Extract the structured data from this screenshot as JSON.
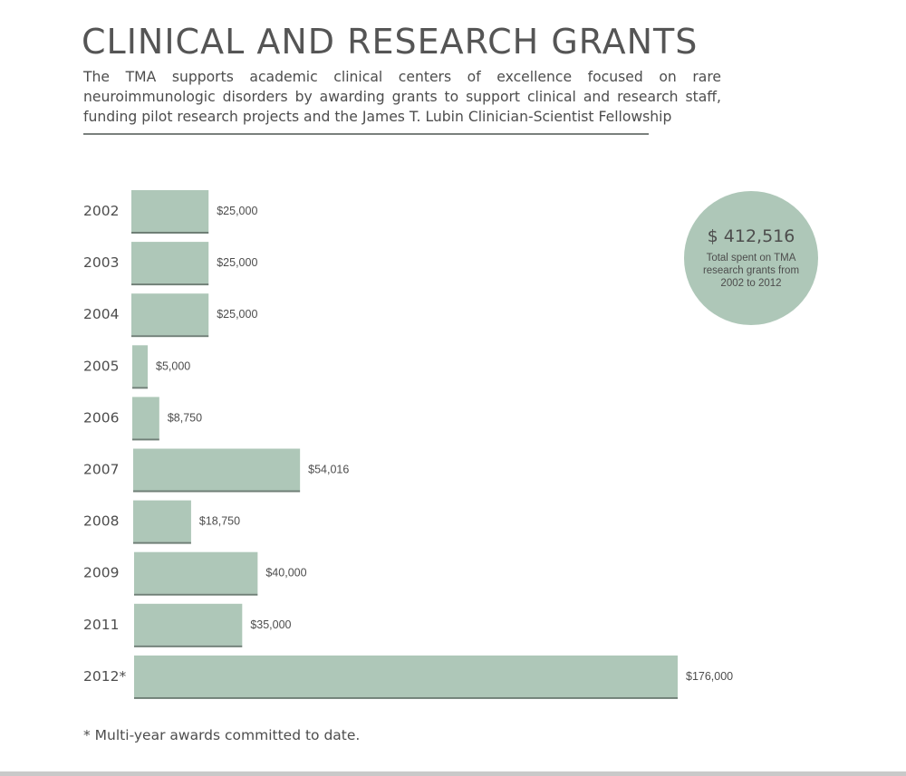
{
  "header": {
    "title": "CLINICAL AND RESEARCH GRANTS",
    "intro": "The TMA supports academic clinical centers of excellence focused on rare neuroimmunologic disorders by awarding grants to support clinical and research staff, funding pilot research projects and the James T. Lubin Clinician-Scientist Fellowship"
  },
  "callout": {
    "amount": "$ 412,516",
    "text": "Total spent on TMA research grants from 2002 to 2012"
  },
  "footnote": "* Multi-year awards committed to date.",
  "colors": {
    "bar": "#aec7b8",
    "bar_edge": "#6f7f76",
    "callout": "#aec7b8"
  },
  "chart_data": {
    "type": "bar",
    "orientation": "horizontal",
    "categories": [
      "2002",
      "2003",
      "2004",
      "2005",
      "2006",
      "2007",
      "2008",
      "2009",
      "2011",
      "2012*"
    ],
    "values": [
      25000,
      25000,
      25000,
      5000,
      8750,
      54016,
      18750,
      40000,
      35000,
      176000
    ],
    "value_labels": [
      "$25,000",
      "$25,000",
      "$25,000",
      "$5,000",
      "$8,750",
      "$54,016",
      "$18,750",
      "$40,000",
      "$35,000",
      "$176,000"
    ],
    "grid": false,
    "legend": false
  }
}
